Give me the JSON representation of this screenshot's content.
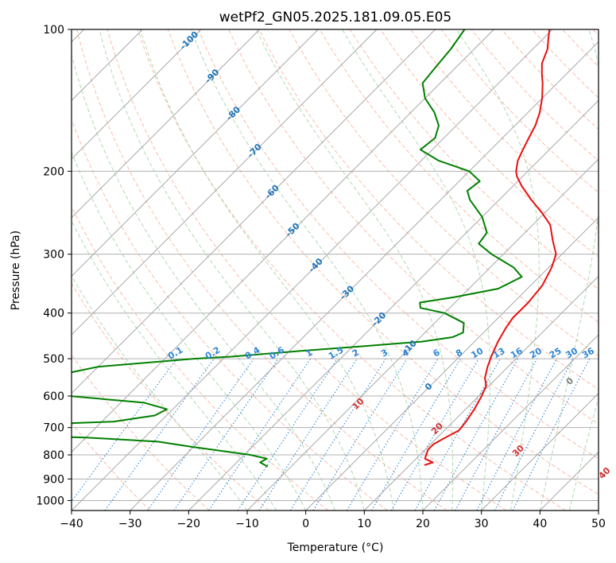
{
  "chart_data": {
    "type": "skew-t",
    "title": "wetPf2_GN05.2025.181.09.05.E05",
    "xlabel": "Temperature (°C)",
    "ylabel": "Pressure (hPa)",
    "xlim": [
      -40,
      50
    ],
    "ylim": [
      1050,
      100
    ],
    "y_scale": "log",
    "x_ticks": [
      "−40",
      "−30",
      "−20",
      "−10",
      "0",
      "10",
      "20",
      "30",
      "40",
      "50"
    ],
    "y_ticks": [
      "100",
      "200",
      "300",
      "400",
      "500",
      "600",
      "700",
      "800",
      "900",
      "1000"
    ],
    "grid": true,
    "colors": {
      "temperature": "#e8100f",
      "dewpoint": "#008000",
      "dry_adiabat": "#f7a58c",
      "moist_adiabat": "#9ccf9c",
      "mixing_ratio": "#2f86d6",
      "isotherm_label": "#1f74b8",
      "theta_label": "#d03030",
      "theta_e_label": "#808080"
    },
    "isotherm_labels": [
      "-100",
      "-90",
      "-80",
      "-70",
      "-60",
      "-50",
      "-40",
      "-30",
      "-20",
      "-10",
      "0"
    ],
    "mixing_ratio_labels": [
      "0.1",
      "0.2",
      "0.4",
      "0.6",
      "1",
      "1.5",
      "2",
      "3",
      "4",
      "6",
      "8",
      "10",
      "13",
      "16",
      "20",
      "25",
      "30",
      "36"
    ],
    "theta_labels": [
      "10",
      "20",
      "30",
      "40"
    ],
    "series": [
      {
        "name": "Temperature",
        "points": [
          [
            841,
            12.5
          ],
          [
            830,
            13.5
          ],
          [
            815,
            11.5
          ],
          [
            780,
            10.5
          ],
          [
            760,
            10.5
          ],
          [
            740,
            11.2
          ],
          [
            710,
            12.5
          ],
          [
            680,
            12.2
          ],
          [
            640,
            11.5
          ],
          [
            600,
            10.5
          ],
          [
            570,
            9.5
          ],
          [
            550,
            8.0
          ],
          [
            520,
            6.5
          ],
          [
            490,
            5.2
          ],
          [
            460,
            4.0
          ],
          [
            430,
            3.0
          ],
          [
            410,
            2.5
          ],
          [
            380,
            2.5
          ],
          [
            350,
            2.0
          ],
          [
            320,
            0.5
          ],
          [
            300,
            -1.0
          ],
          [
            280,
            -4.0
          ],
          [
            260,
            -7.0
          ],
          [
            245,
            -10.5
          ],
          [
            230,
            -14.5
          ],
          [
            215,
            -18.5
          ],
          [
            205,
            -21.0
          ],
          [
            200,
            -22.0
          ],
          [
            190,
            -23.5
          ],
          [
            180,
            -24.5
          ],
          [
            170,
            -25.5
          ],
          [
            160,
            -26.5
          ],
          [
            150,
            -28.0
          ],
          [
            140,
            -30.0
          ],
          [
            130,
            -32.5
          ],
          [
            125,
            -34.0
          ],
          [
            118,
            -36.0
          ],
          [
            110,
            -37.5
          ],
          [
            105,
            -39.0
          ],
          [
            100,
            -40.5
          ]
        ]
      },
      {
        "name": "Dewpoint",
        "points": [
          [
            847,
            -14.0
          ],
          [
            830,
            -16.0
          ],
          [
            815,
            -15.5
          ],
          [
            800,
            -19.0
          ],
          [
            770,
            -30.0
          ],
          [
            750,
            -37.0
          ],
          [
            735,
            -50.0
          ],
          [
            730,
            -60.0
          ],
          [
            700,
            -70.0
          ],
          [
            685,
            -55.0
          ],
          [
            680,
            -48.0
          ],
          [
            660,
            -42.0
          ],
          [
            640,
            -41.0
          ],
          [
            620,
            -46.0
          ],
          [
            600,
            -60.0
          ],
          [
            540,
            -65.0
          ],
          [
            520,
            -60.0
          ],
          [
            500,
            -45.0
          ],
          [
            495,
            -39.0
          ],
          [
            480,
            -27.0
          ],
          [
            470,
            -18.0
          ],
          [
            460,
            -9.0
          ],
          [
            450,
            -4.5
          ],
          [
            440,
            -3.5
          ],
          [
            420,
            -5.0
          ],
          [
            400,
            -10.0
          ],
          [
            390,
            -15.0
          ],
          [
            380,
            -16.0
          ],
          [
            370,
            -11.0
          ],
          [
            355,
            -5.0
          ],
          [
            335,
            -3.0
          ],
          [
            320,
            -6.0
          ],
          [
            300,
            -12.0
          ],
          [
            285,
            -16.0
          ],
          [
            270,
            -16.5
          ],
          [
            250,
            -20.0
          ],
          [
            230,
            -25.0
          ],
          [
            220,
            -27.0
          ],
          [
            210,
            -26.5
          ],
          [
            200,
            -30.0
          ],
          [
            190,
            -37.0
          ],
          [
            180,
            -42.0
          ],
          [
            170,
            -41.5
          ],
          [
            160,
            -43.0
          ],
          [
            150,
            -46.0
          ],
          [
            140,
            -50.0
          ],
          [
            130,
            -53.0
          ],
          [
            120,
            -53.5
          ],
          [
            110,
            -54.0
          ],
          [
            100,
            -55.0
          ]
        ]
      }
    ]
  }
}
